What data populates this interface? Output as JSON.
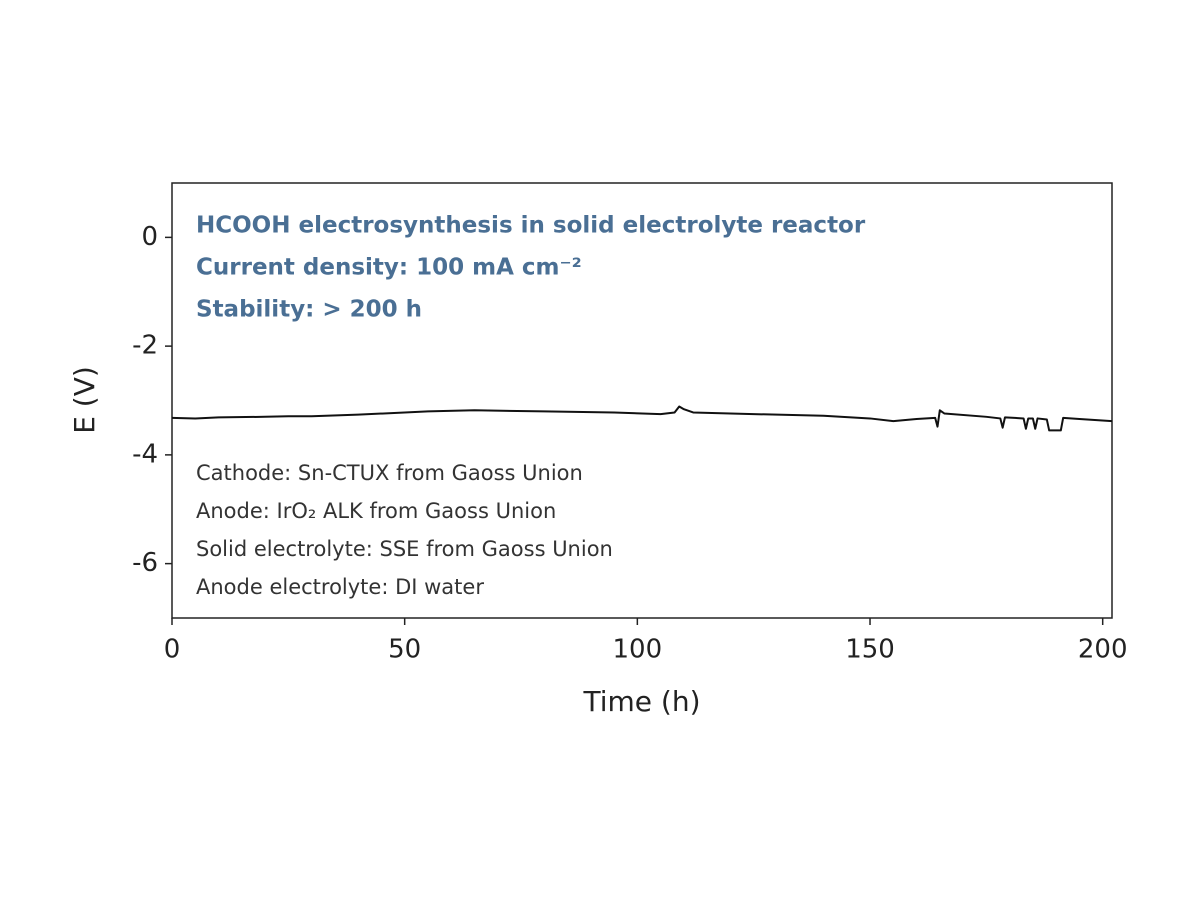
{
  "chart_data": {
    "type": "line",
    "xlabel": "Time (h)",
    "ylabel": "E (V)",
    "annotations_top": [
      "HCOOH electrosynthesis in solid electrolyte reactor",
      "Current density: 100 mA cm⁻²",
      "Stability:  > 200 h"
    ],
    "annotations_bottom": [
      "Cathode: Sn-CTUX from Gaoss Union",
      "Anode: IrO₂  ALK from Gaoss Union",
      "Solid electrolyte: SSE from Gaoss Union",
      "Anode electrolyte: DI water"
    ],
    "annotation_top_color": "#4a6f94",
    "annotation_bottom_color": "#333333",
    "xlim": [
      0,
      202
    ],
    "ylim": [
      -7,
      1
    ],
    "xticks": [
      0,
      50,
      100,
      150,
      200
    ],
    "yticks": [
      0,
      -2,
      -4,
      -6
    ],
    "x": [
      0,
      5,
      10,
      20,
      25,
      30,
      40,
      50,
      55,
      65,
      80,
      95,
      105,
      108,
      109,
      110,
      112,
      120,
      140,
      150,
      155,
      160,
      164,
      164.5,
      165,
      166,
      175,
      178,
      178.5,
      179,
      183,
      183.5,
      184,
      185,
      185.5,
      186,
      188,
      188.5,
      191,
      191.5,
      195,
      202
    ],
    "values": [
      -3.32,
      -3.33,
      -3.31,
      -3.3,
      -3.29,
      -3.29,
      -3.26,
      -3.22,
      -3.2,
      -3.18,
      -3.2,
      -3.22,
      -3.25,
      -3.22,
      -3.11,
      -3.16,
      -3.22,
      -3.24,
      -3.28,
      -3.33,
      -3.38,
      -3.34,
      -3.32,
      -3.48,
      -3.18,
      -3.24,
      -3.3,
      -3.33,
      -3.5,
      -3.31,
      -3.33,
      -3.52,
      -3.33,
      -3.33,
      -3.52,
      -3.33,
      -3.35,
      -3.55,
      -3.55,
      -3.32,
      -3.34,
      -3.38
    ],
    "color": "#111111"
  }
}
